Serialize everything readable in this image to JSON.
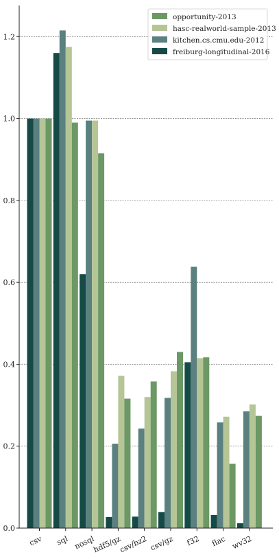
{
  "chart_data": {
    "type": "bar",
    "title": "",
    "xlabel": "",
    "ylabel": "",
    "ylim": [
      0,
      1.28
    ],
    "yticks": [
      0.0,
      0.2,
      0.4,
      0.6,
      0.8,
      1.0,
      1.2
    ],
    "ytick_labels": [
      "0.0",
      "0.2",
      "0.4",
      "0.6",
      "0.8",
      "1.0",
      "1.2"
    ],
    "grid": "horizontal-dashed",
    "legend_position": "top-right",
    "categories": [
      "csv",
      "sql",
      "nosql",
      "hdf5/gz",
      "csv/bz2",
      "csv/gz",
      "f32",
      "flac",
      "wv32"
    ],
    "series": [
      {
        "name": "freiburg-longitudinal-2016",
        "color": "#154a47",
        "values": [
          1.0,
          1.16,
          0.62,
          0.027,
          0.028,
          0.039,
          0.405,
          0.032,
          0.012
        ]
      },
      {
        "name": "kitchen.cs.cmu.edu-2012",
        "color": "#5a8180",
        "values": [
          1.0,
          1.215,
          0.995,
          0.206,
          0.243,
          0.318,
          0.638,
          0.258,
          0.285
        ]
      },
      {
        "name": "hasc-realworld-sample-2013",
        "color": "#b5c596",
        "values": [
          1.0,
          1.175,
          0.995,
          0.372,
          0.32,
          0.383,
          0.415,
          0.272,
          0.302
        ]
      },
      {
        "name": "opportunity-2013",
        "color": "#6b9865",
        "values": [
          1.0,
          0.99,
          0.915,
          0.316,
          0.358,
          0.43,
          0.417,
          0.157,
          0.274
        ]
      }
    ],
    "legend_order": [
      "opportunity-2013",
      "hasc-realworld-sample-2013",
      "kitchen.cs.cmu.edu-2012",
      "freiburg-longitudinal-2016"
    ]
  }
}
